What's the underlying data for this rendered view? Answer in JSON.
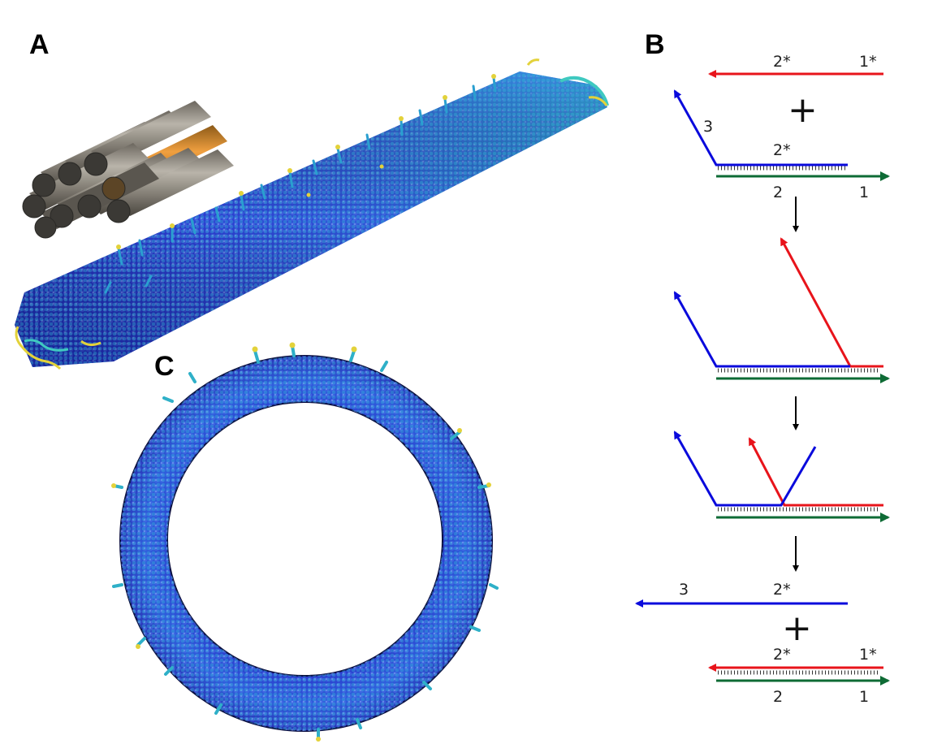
{
  "panels": {
    "a": {
      "letter": "A"
    },
    "b": {
      "letter": "B"
    },
    "c": {
      "letter": "C"
    }
  },
  "colors": {
    "red_strand": "#e8141b",
    "blue_strand": "#0a0adc",
    "green_strand": "#0e6b35",
    "bead_dark": "#2b35c8",
    "bead_mid": "#2a8fd8",
    "bead_light": "#3fc9c0",
    "bead_tip": "#e3d23a",
    "helix_gray": "#8a857b",
    "helix_highlight": "#f0921e"
  },
  "scheme": {
    "step1": {
      "red_labels": [
        "2*",
        "1*"
      ],
      "blue_labels": [
        "3",
        "2*"
      ],
      "green_labels": [
        "2",
        "1"
      ],
      "plus": "+"
    },
    "step4": {
      "blue_labels": [
        "3",
        "2*"
      ],
      "plus": "+",
      "red_labels": [
        "2*",
        "1*"
      ],
      "green_labels": [
        "2",
        "1"
      ]
    }
  }
}
